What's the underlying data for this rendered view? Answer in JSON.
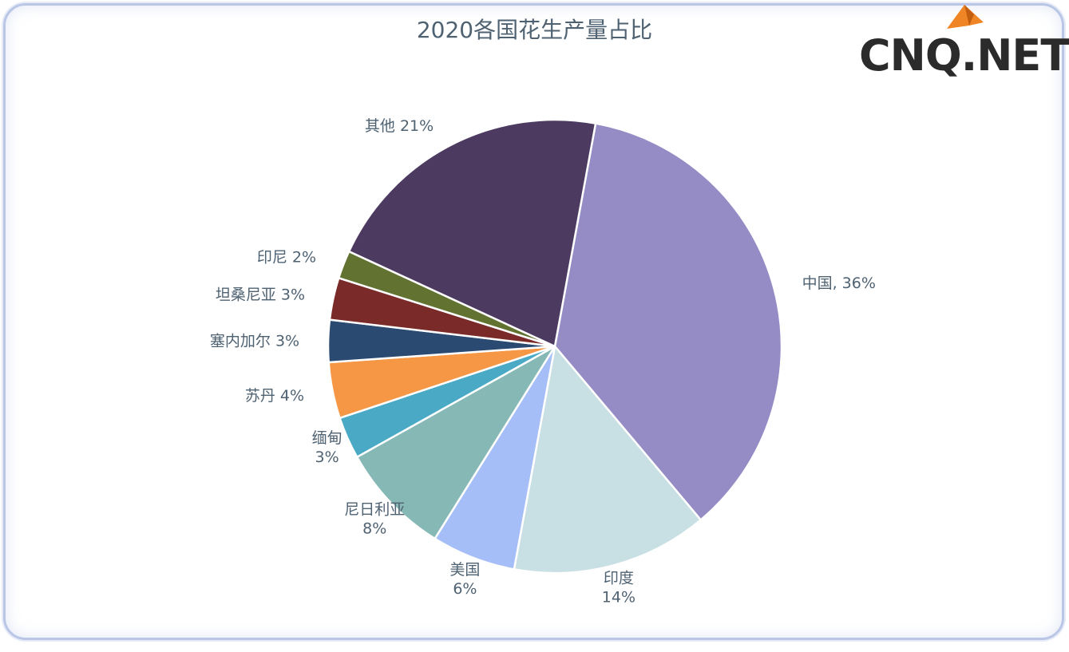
{
  "chart_data": {
    "type": "pie",
    "title": "2020各国花生产量占比",
    "slices": [
      {
        "name": "中国",
        "value": 36,
        "label": "中国, 36%",
        "color": "#968cc5"
      },
      {
        "name": "印度",
        "value": 14,
        "label": "印度\n14%",
        "color": "#c8dfe4"
      },
      {
        "name": "美国",
        "value": 6,
        "label": "美国\n6%",
        "color": "#a5bef7"
      },
      {
        "name": "尼日利亚",
        "value": 8,
        "label": "尼日利亚\n8%",
        "color": "#86b8b5"
      },
      {
        "name": "缅甸",
        "value": 3,
        "label": "缅甸\n3%",
        "color": "#4aaac6"
      },
      {
        "name": "苏丹",
        "value": 4,
        "label": "苏丹 4%",
        "color": "#f69746"
      },
      {
        "name": "塞内加尔",
        "value": 3,
        "label": "塞内加尔 3%",
        "color": "#2b4a72"
      },
      {
        "name": "坦桑尼亚",
        "value": 3,
        "label": "坦桑尼亚 3%",
        "color": "#7a2a28"
      },
      {
        "name": "印尼",
        "value": 2,
        "label": "印尼 2%",
        "color": "#627331"
      },
      {
        "name": "其他",
        "value": 21,
        "label": "其他 21%",
        "color": "#4c3a60"
      }
    ]
  },
  "watermark": {
    "brand": "CNQ.NET",
    "accent_color": "#f08526"
  }
}
